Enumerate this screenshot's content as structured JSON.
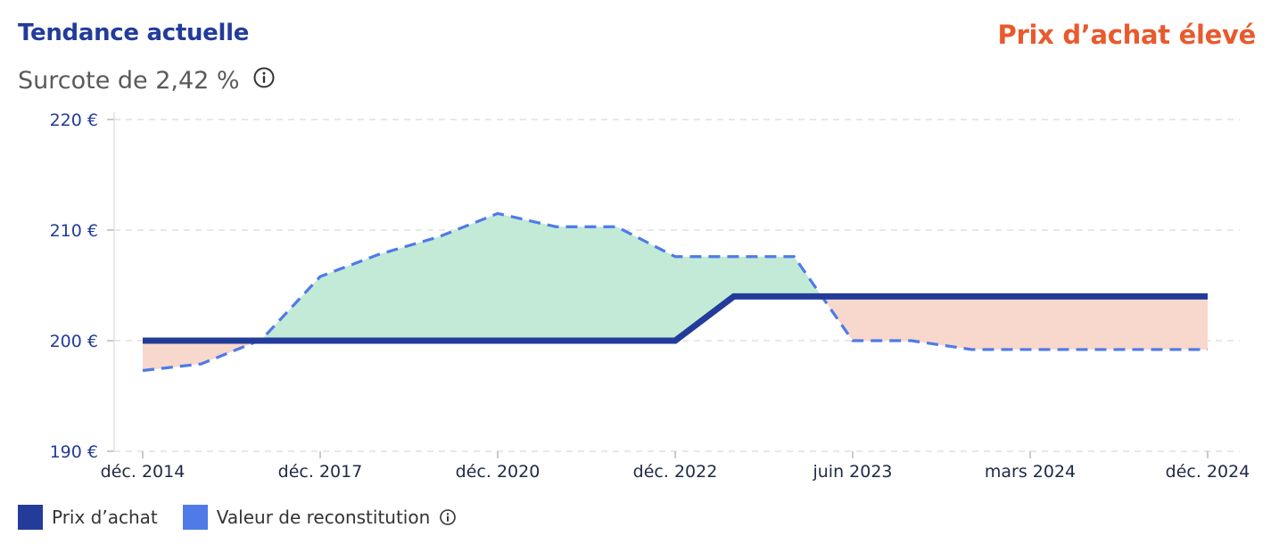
{
  "header": {
    "title": "Tendance actuelle",
    "status": "Prix d’achat élevé",
    "subtitle": "Surcote de 2,42 %",
    "info_icon": "info-icon"
  },
  "colors": {
    "title": "#233c9a",
    "status": "#e85a2e",
    "purchase_line": "#233c9a",
    "value_line": "#4f7ae8",
    "fill_above": "#c2ead7",
    "fill_below": "#f8d7cc",
    "grid": "#d9d9d9"
  },
  "chart_data": {
    "type": "line",
    "x": [
      "déc. 2014",
      "déc. 2017",
      "déc. 2020",
      "déc. 2022",
      "juin 2023",
      "mars 2024",
      "déc. 2024"
    ],
    "yticks": [
      190,
      200,
      210,
      220
    ],
    "ytick_labels": [
      "190 €",
      "200 €",
      "210 €",
      "220 €"
    ],
    "ylim": [
      190,
      220
    ],
    "grid": true,
    "legend_position": "bottom-left",
    "series": [
      {
        "name": "Prix d’achat",
        "style": "solid",
        "points": [
          [
            0,
            200
          ],
          [
            1.5,
            200
          ],
          [
            2.5,
            200
          ],
          [
            3.0,
            200
          ],
          [
            3.33,
            204
          ],
          [
            4.0,
            204
          ],
          [
            5.0,
            204
          ],
          [
            6.0,
            204
          ]
        ]
      },
      {
        "name": "Valeur de reconstitution",
        "style": "dashed",
        "points": [
          [
            0,
            197.3
          ],
          [
            0.33,
            197.9
          ],
          [
            0.67,
            200.1
          ],
          [
            1.0,
            205.8
          ],
          [
            1.33,
            207.8
          ],
          [
            1.67,
            209.4
          ],
          [
            2.0,
            211.5
          ],
          [
            2.33,
            210.3
          ],
          [
            2.67,
            210.3
          ],
          [
            3.0,
            207.6
          ],
          [
            3.33,
            207.6
          ],
          [
            3.67,
            207.6
          ],
          [
            4.0,
            200.0
          ],
          [
            4.33,
            200.0
          ],
          [
            4.67,
            199.2
          ],
          [
            5.0,
            199.2
          ],
          [
            5.5,
            199.2
          ],
          [
            6.0,
            199.2
          ]
        ]
      }
    ]
  },
  "legend": [
    {
      "label": "Prix d’achat",
      "color": "#233c9a",
      "has_info": false
    },
    {
      "label": "Valeur de reconstitution",
      "color": "#4f7ae8",
      "has_info": true
    }
  ]
}
